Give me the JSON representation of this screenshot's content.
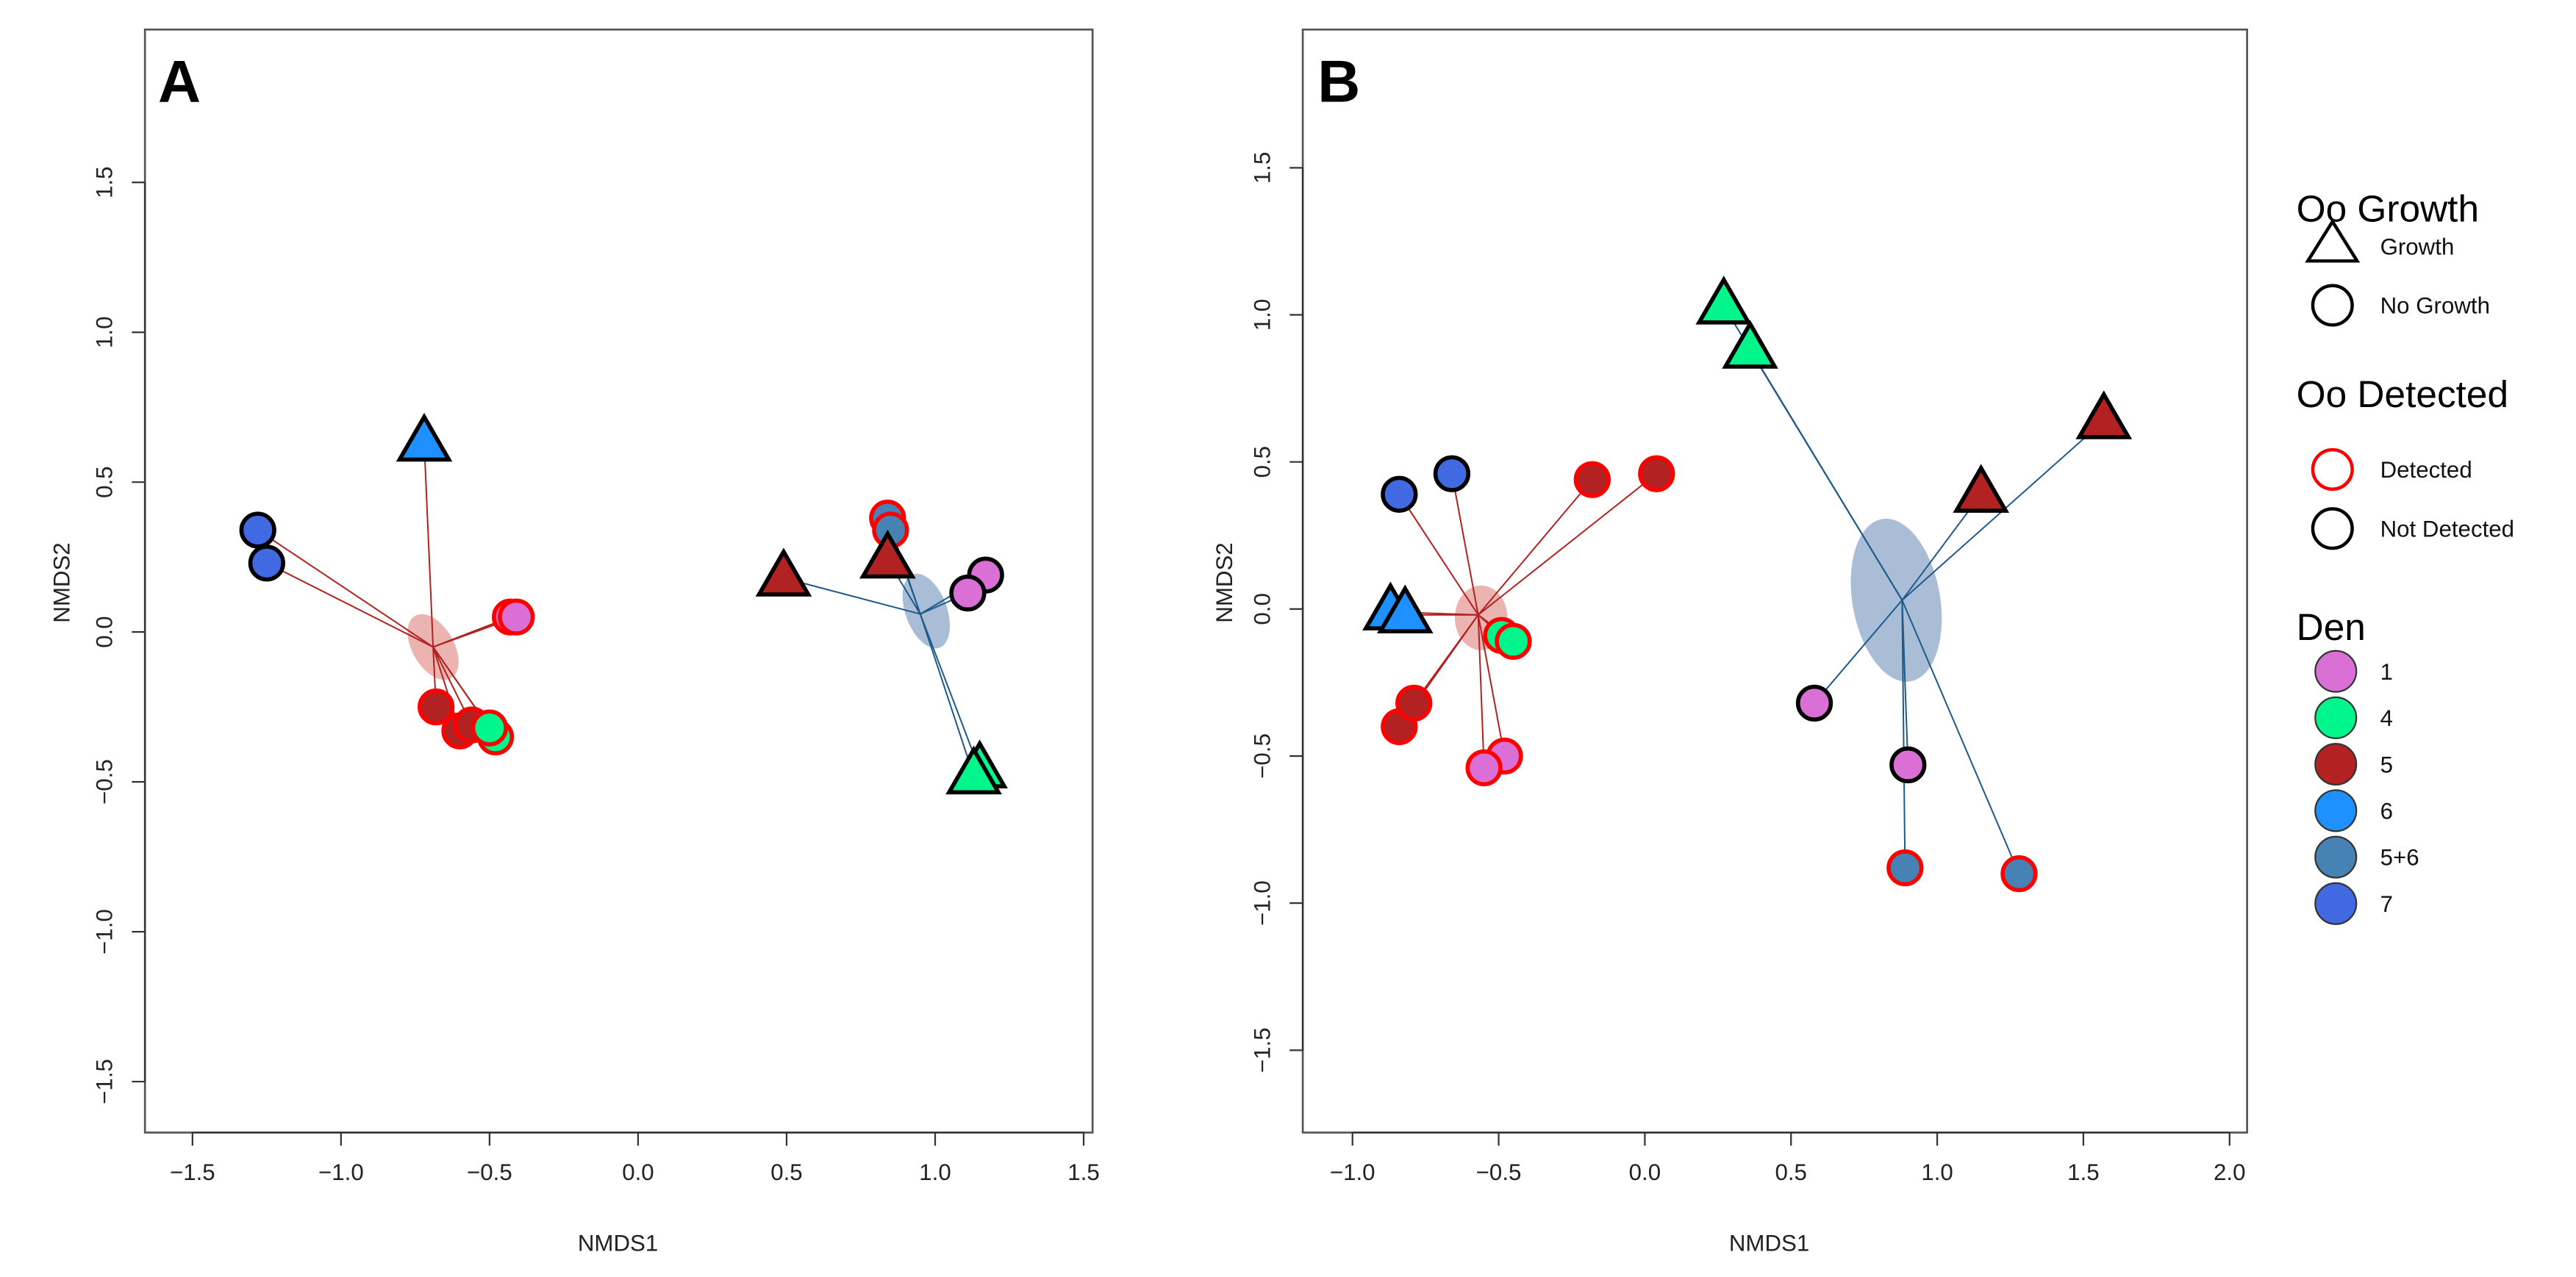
{
  "colors": {
    "den_1": "#DA70D6",
    "den_4": "#00F58A",
    "den_5": "#B22222",
    "den_6": "#1E90FF",
    "den_5+6": "#4682B4",
    "den_7": "#4169E1",
    "detected_edge": "#FF0000",
    "not_detected_edge": "#000000",
    "group1_spider": "#B22222",
    "group2_spider": "#1F5A8A",
    "group1_ellipse": "#E8A7A3",
    "group2_ellipse": "#9AB3CF"
  },
  "legend": {
    "growth_title": "Oo Growth",
    "growth_items": [
      "Growth",
      "No Growth"
    ],
    "detected_title": "Oo Detected",
    "detected_items": [
      "Detected",
      "Not Detected"
    ],
    "den_title": "Den",
    "den_items": [
      "1",
      "4",
      "5",
      "6",
      "5+6",
      "7"
    ]
  },
  "chart_data": [
    {
      "type": "scatter",
      "title": "A",
      "xlabel": "NMDS1",
      "ylabel": "NMDS2",
      "xlim": [
        -1.66,
        1.53
      ],
      "ylim": [
        -1.67,
        2.01
      ],
      "xticks": [
        "-1.5",
        "-1.0",
        "-0.5",
        "0.0",
        "0.5",
        "1.0",
        "1.5"
      ],
      "yticks": [
        "-1.5",
        "-1.0",
        "-0.5",
        "0.0",
        "0.5",
        "1.0",
        "1.5"
      ],
      "grid": false,
      "centroids": [
        {
          "group": 1,
          "x": -0.69,
          "y": -0.05
        },
        {
          "group": 2,
          "x": 0.95,
          "y": 0.06
        }
      ],
      "ellipses": [
        {
          "group": 1,
          "x": -0.69,
          "y": -0.05,
          "rx": 0.07,
          "ry": 0.12,
          "angle": -30
        },
        {
          "group": 2,
          "x": 0.97,
          "y": 0.07,
          "rx": 0.07,
          "ry": 0.13,
          "angle": -20
        }
      ],
      "points": [
        {
          "x": -1.28,
          "y": 0.34,
          "den": "7",
          "growth": false,
          "detected": false,
          "group": 1
        },
        {
          "x": -1.25,
          "y": 0.23,
          "den": "7",
          "growth": false,
          "detected": false,
          "group": 1
        },
        {
          "x": -0.72,
          "y": 0.63,
          "den": "6",
          "growth": true,
          "detected": false,
          "group": 1
        },
        {
          "x": -0.43,
          "y": 0.05,
          "den": "1",
          "growth": false,
          "detected": true,
          "group": 1
        },
        {
          "x": -0.41,
          "y": 0.05,
          "den": "1",
          "growth": false,
          "detected": true,
          "group": 1
        },
        {
          "x": -0.68,
          "y": -0.25,
          "den": "5",
          "growth": false,
          "detected": true,
          "group": 1
        },
        {
          "x": -0.6,
          "y": -0.33,
          "den": "5",
          "growth": false,
          "detected": true,
          "group": 1
        },
        {
          "x": -0.56,
          "y": -0.31,
          "den": "5",
          "growth": false,
          "detected": true,
          "group": 1
        },
        {
          "x": -0.48,
          "y": -0.35,
          "den": "4",
          "growth": false,
          "detected": true,
          "group": 1
        },
        {
          "x": -0.5,
          "y": -0.32,
          "den": "4",
          "growth": false,
          "detected": true,
          "group": 1
        },
        {
          "x": 0.49,
          "y": 0.18,
          "den": "5",
          "growth": true,
          "detected": false,
          "group": 2
        },
        {
          "x": 0.84,
          "y": 0.38,
          "den": "5+6",
          "growth": false,
          "detected": true,
          "group": 2
        },
        {
          "x": 0.85,
          "y": 0.34,
          "den": "5+6",
          "growth": false,
          "detected": true,
          "group": 2
        },
        {
          "x": 0.84,
          "y": 0.24,
          "den": "5",
          "growth": true,
          "detected": false,
          "group": 2
        },
        {
          "x": 1.17,
          "y": 0.19,
          "den": "1",
          "growth": false,
          "detected": false,
          "group": 2
        },
        {
          "x": 1.11,
          "y": 0.13,
          "den": "1",
          "growth": false,
          "detected": false,
          "group": 2
        },
        {
          "x": 1.15,
          "y": -0.46,
          "den": "4",
          "growth": true,
          "detected": false,
          "group": 2
        },
        {
          "x": 1.13,
          "y": -0.48,
          "den": "4",
          "growth": true,
          "detected": false,
          "group": 2
        }
      ]
    },
    {
      "type": "scatter",
      "title": "B",
      "xlabel": "NMDS1",
      "ylabel": "NMDS2",
      "xlim": [
        -1.17,
        2.06
      ],
      "ylim": [
        -1.78,
        1.97
      ],
      "xticks": [
        "-1.0",
        "-0.5",
        "0.0",
        "0.5",
        "1.0",
        "1.5",
        "2.0"
      ],
      "yticks": [
        "-1.5",
        "-1.0",
        "-0.5",
        "0.0",
        "0.5",
        "1.0",
        "1.5"
      ],
      "grid": false,
      "centroids": [
        {
          "group": 1,
          "x": -0.57,
          "y": -0.02
        },
        {
          "group": 2,
          "x": 0.88,
          "y": 0.03
        }
      ],
      "ellipses": [
        {
          "group": 1,
          "x": -0.56,
          "y": -0.03,
          "rx": 0.09,
          "ry": 0.11,
          "angle": 0
        },
        {
          "group": 2,
          "x": 0.86,
          "y": 0.03,
          "rx": 0.15,
          "ry": 0.28,
          "angle": -10
        }
      ],
      "points": [
        {
          "x": -0.84,
          "y": 0.39,
          "den": "7",
          "growth": false,
          "detected": false,
          "group": 1
        },
        {
          "x": -0.66,
          "y": 0.46,
          "den": "7",
          "growth": false,
          "detected": false,
          "group": 1
        },
        {
          "x": -0.87,
          "y": -0.01,
          "den": "6",
          "growth": true,
          "detected": false,
          "group": 1
        },
        {
          "x": -0.82,
          "y": -0.02,
          "den": "6",
          "growth": true,
          "detected": false,
          "group": 1
        },
        {
          "x": -0.18,
          "y": 0.44,
          "den": "5",
          "growth": false,
          "detected": true,
          "group": 1
        },
        {
          "x": 0.04,
          "y": 0.46,
          "den": "5",
          "growth": false,
          "detected": true,
          "group": 1
        },
        {
          "x": -0.84,
          "y": -0.4,
          "den": "5",
          "growth": false,
          "detected": true,
          "group": 1
        },
        {
          "x": -0.79,
          "y": -0.32,
          "den": "5",
          "growth": false,
          "detected": true,
          "group": 1
        },
        {
          "x": -0.49,
          "y": -0.09,
          "den": "4",
          "growth": false,
          "detected": true,
          "group": 1
        },
        {
          "x": -0.45,
          "y": -0.11,
          "den": "4",
          "growth": false,
          "detected": true,
          "group": 1
        },
        {
          "x": -0.48,
          "y": -0.5,
          "den": "1",
          "growth": false,
          "detected": true,
          "group": 1
        },
        {
          "x": -0.55,
          "y": -0.54,
          "den": "1",
          "growth": false,
          "detected": true,
          "group": 1
        },
        {
          "x": 0.27,
          "y": 1.03,
          "den": "4",
          "growth": true,
          "detected": false,
          "group": 2
        },
        {
          "x": 0.36,
          "y": 0.88,
          "den": "4",
          "growth": true,
          "detected": false,
          "group": 2
        },
        {
          "x": 1.15,
          "y": 0.39,
          "den": "5",
          "growth": true,
          "detected": false,
          "group": 2
        },
        {
          "x": 1.57,
          "y": 0.64,
          "den": "5",
          "growth": true,
          "detected": false,
          "group": 2
        },
        {
          "x": 0.58,
          "y": -0.32,
          "den": "1",
          "growth": false,
          "detected": false,
          "group": 2
        },
        {
          "x": 0.9,
          "y": -0.53,
          "den": "1",
          "growth": false,
          "detected": false,
          "group": 2
        },
        {
          "x": 0.89,
          "y": -0.88,
          "den": "5+6",
          "growth": false,
          "detected": true,
          "group": 2
        },
        {
          "x": 1.28,
          "y": -0.9,
          "den": "5+6",
          "growth": false,
          "detected": true,
          "group": 2
        }
      ]
    }
  ]
}
